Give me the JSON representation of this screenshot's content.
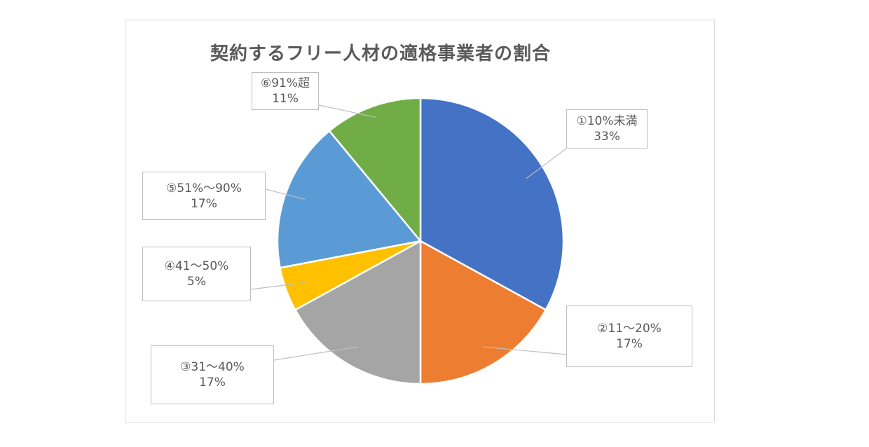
{
  "chart_data": {
    "type": "pie",
    "title": "契約するフリー人材の適格事業者の割合",
    "slices": [
      {
        "label": "①10%未満",
        "value": 33,
        "value_label": "33%",
        "color": "#4472C4"
      },
      {
        "label": "②11～20%",
        "value": 17,
        "value_label": "17%",
        "color": "#ED7D31"
      },
      {
        "label": "③31～40%",
        "value": 17,
        "value_label": "17%",
        "color": "#A5A5A5"
      },
      {
        "label": "④41～50%",
        "value": 5,
        "value_label": "5%",
        "color": "#FFC000"
      },
      {
        "label": "⑤51%～90%",
        "value": 17,
        "value_label": "17%",
        "color": "#5B9BD5"
      },
      {
        "label": "⑥91%超",
        "value": 11,
        "value_label": "11%",
        "color": "#70AD47"
      }
    ]
  }
}
